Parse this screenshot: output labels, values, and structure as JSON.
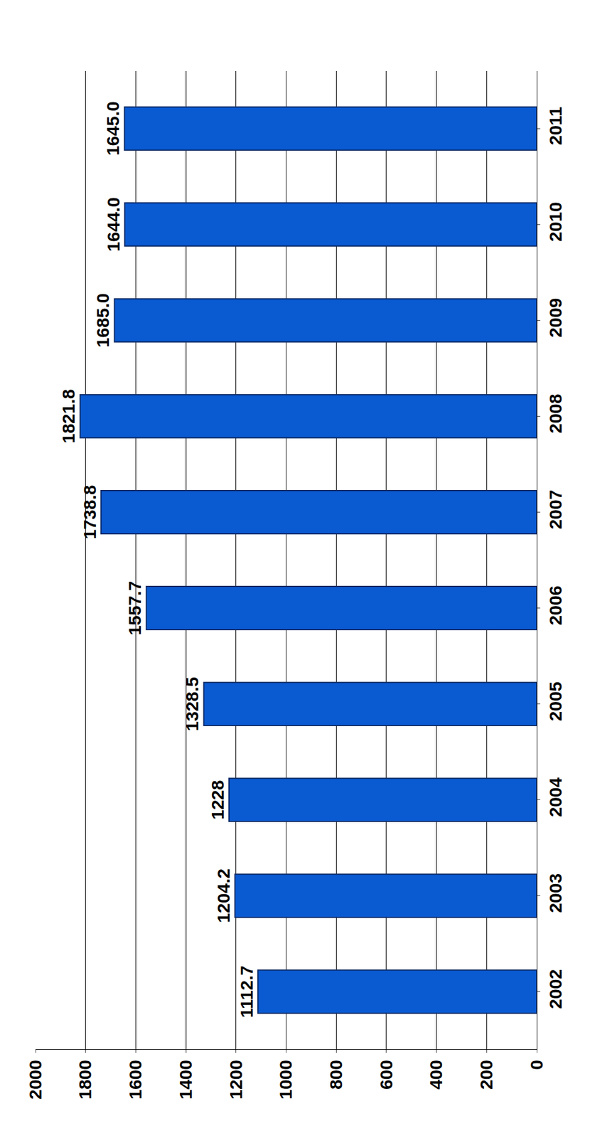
{
  "chart_data": {
    "type": "bar",
    "categories": [
      "2002",
      "2003",
      "2004",
      "2005",
      "2006",
      "2007",
      "2008",
      "2009",
      "2010",
      "2011"
    ],
    "values": [
      1112.7,
      1204.2,
      1228,
      1328.5,
      1557.7,
      1738.8,
      1821.8,
      1685.0,
      1644.0,
      1645.0
    ],
    "value_labels": [
      "1112.7",
      "1204.2",
      "1228",
      "1328.5",
      "1557.7",
      "1738.8",
      "1821.8",
      "1685.0",
      "1644.0",
      "1645.0"
    ],
    "color": "#0a5ad2",
    "orientation": "horizontal",
    "ylim": [
      0,
      2000
    ],
    "yticks": [
      0,
      200,
      400,
      600,
      800,
      1000,
      1200,
      1400,
      1600,
      1800,
      2000
    ],
    "grid": true,
    "data_labels": true
  }
}
